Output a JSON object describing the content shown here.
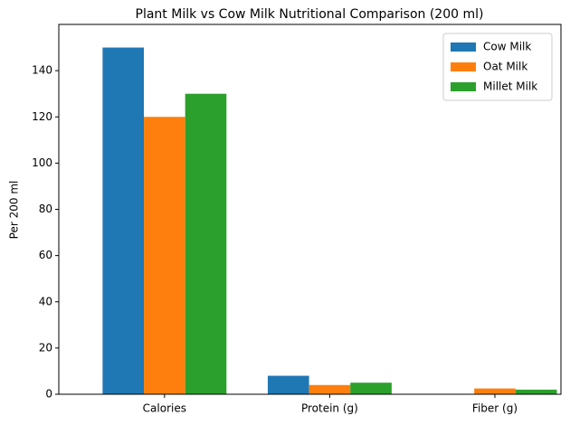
{
  "chart_data": {
    "type": "bar",
    "title": "Plant Milk vs Cow Milk Nutritional Comparison (200 ml)",
    "y_label": "Per 200 ml",
    "categories": [
      "Calories",
      "Protein (g)",
      "Fiber (g)"
    ],
    "series": [
      {
        "name": "Cow Milk",
        "color": "#1f77b4",
        "values": [
          150,
          8,
          0
        ]
      },
      {
        "name": "Oat Milk",
        "color": "#ff7f0e",
        "values": [
          120,
          4,
          2.5
        ]
      },
      {
        "name": "Millet Milk",
        "color": "#2ca02c",
        "values": [
          130,
          5,
          2
        ]
      }
    ],
    "ylim": [
      0,
      160
    ],
    "yticks": [
      0,
      20,
      40,
      60,
      80,
      100,
      120,
      140
    ],
    "legend": "upper right"
  }
}
